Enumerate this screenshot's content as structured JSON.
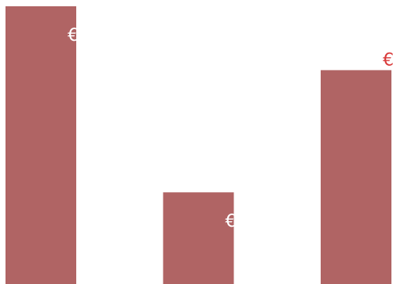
{
  "chart_data": {
    "type": "bar",
    "categories": [
      "",
      "",
      ""
    ],
    "values": [
      100,
      33,
      77
    ],
    "title": "",
    "xlabel": "",
    "ylabel": "",
    "ylim": [
      0,
      100
    ],
    "grid": false,
    "legend": "none",
    "bar_color": "#b06464",
    "data_labels": [
      "€",
      "€",
      "€"
    ],
    "data_label_colors": [
      "#ffffff",
      "#ffffff",
      "#d93a3a"
    ],
    "data_label_placement": [
      "inside-top-right",
      "inside-top-right",
      "outside-top-right"
    ]
  }
}
